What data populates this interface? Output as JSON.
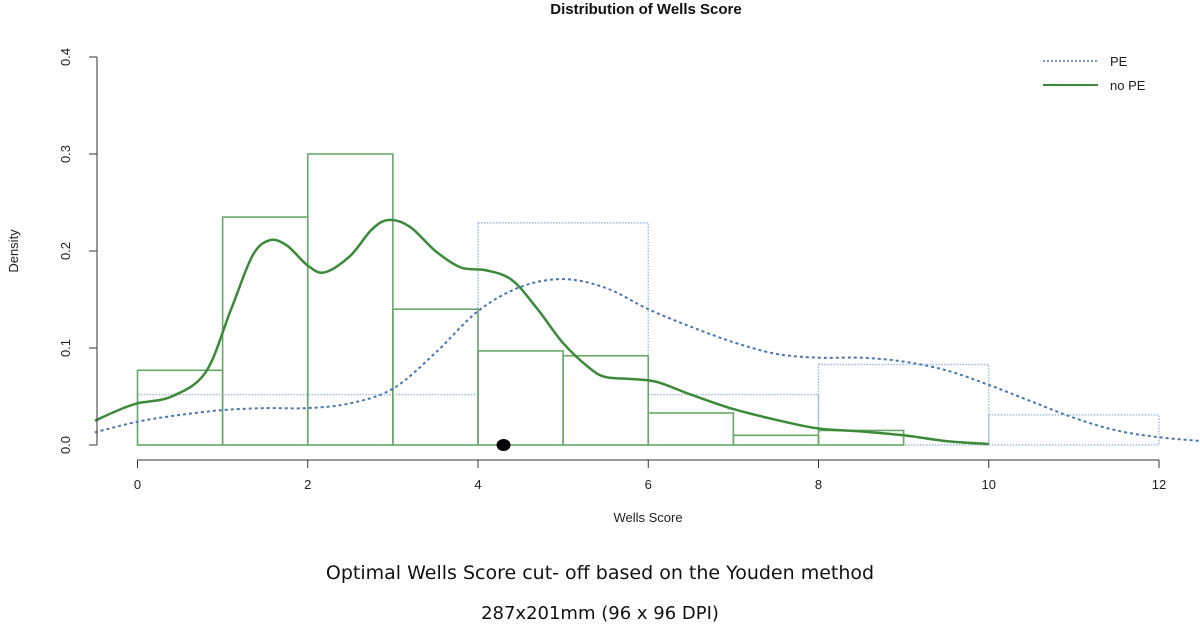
{
  "chart_data": {
    "type": "histogram",
    "title": "Distribution of Wells Score",
    "xlabel": "Wells Score",
    "ylabel": "Density",
    "xlim": [
      -0.5,
      12.5
    ],
    "ylim": [
      0,
      0.4
    ],
    "x_ticks": [
      "0",
      "2",
      "4",
      "6",
      "8",
      "10",
      "12"
    ],
    "y_ticks": [
      "0.0",
      "0.1",
      "0.2",
      "0.3",
      "0.4"
    ],
    "legend_position": "top-right",
    "grid": false,
    "series": [
      {
        "name": "PE",
        "line_style": "dotted",
        "color": "#4a76b0",
        "histogram": [
          {
            "x0": 0,
            "x1": 4,
            "density": 0.052
          },
          {
            "x0": 4,
            "x1": 6,
            "density": 0.229
          },
          {
            "x0": 6,
            "x1": 8,
            "density": 0.052
          },
          {
            "x0": 8,
            "x1": 10,
            "density": 0.083
          },
          {
            "x0": 10,
            "x1": 12,
            "density": 0.031
          }
        ],
        "density_curve": [
          [
            -0.5,
            0.013
          ],
          [
            0,
            0.024
          ],
          [
            0.5,
            0.031
          ],
          [
            1,
            0.036
          ],
          [
            1.5,
            0.038
          ],
          [
            2,
            0.038
          ],
          [
            2.5,
            0.043
          ],
          [
            3,
            0.058
          ],
          [
            3.5,
            0.095
          ],
          [
            4,
            0.138
          ],
          [
            4.5,
            0.163
          ],
          [
            5,
            0.171
          ],
          [
            5.5,
            0.162
          ],
          [
            6,
            0.14
          ],
          [
            6.5,
            0.122
          ],
          [
            7,
            0.106
          ],
          [
            7.5,
            0.094
          ],
          [
            8,
            0.09
          ],
          [
            8.5,
            0.09
          ],
          [
            9,
            0.086
          ],
          [
            9.5,
            0.077
          ],
          [
            10,
            0.062
          ],
          [
            10.5,
            0.045
          ],
          [
            11,
            0.028
          ],
          [
            11.5,
            0.015
          ],
          [
            12,
            0.008
          ],
          [
            12.5,
            0.004
          ]
        ]
      },
      {
        "name": "no PE",
        "line_style": "solid",
        "color": "#3a8a3a",
        "histogram": [
          {
            "x0": 0,
            "x1": 1,
            "density": 0.077
          },
          {
            "x0": 1,
            "x1": 2,
            "density": 0.235
          },
          {
            "x0": 2,
            "x1": 3,
            "density": 0.3
          },
          {
            "x0": 3,
            "x1": 4,
            "density": 0.14
          },
          {
            "x0": 4,
            "x1": 5,
            "density": 0.097
          },
          {
            "x0": 5,
            "x1": 6,
            "density": 0.092
          },
          {
            "x0": 6,
            "x1": 7,
            "density": 0.033
          },
          {
            "x0": 7,
            "x1": 8,
            "density": 0.01
          },
          {
            "x0": 8,
            "x1": 9,
            "density": 0.015
          }
        ],
        "density_curve": [
          [
            -0.5,
            0.025
          ],
          [
            -0.25,
            0.035
          ],
          [
            0,
            0.043
          ],
          [
            0.4,
            0.05
          ],
          [
            0.8,
            0.075
          ],
          [
            1.1,
            0.14
          ],
          [
            1.35,
            0.195
          ],
          [
            1.55,
            0.211
          ],
          [
            1.75,
            0.206
          ],
          [
            2,
            0.185
          ],
          [
            2.2,
            0.178
          ],
          [
            2.5,
            0.195
          ],
          [
            2.75,
            0.222
          ],
          [
            2.95,
            0.232
          ],
          [
            3.2,
            0.225
          ],
          [
            3.5,
            0.2
          ],
          [
            3.8,
            0.183
          ],
          [
            4.1,
            0.18
          ],
          [
            4.4,
            0.17
          ],
          [
            4.7,
            0.14
          ],
          [
            5,
            0.105
          ],
          [
            5.3,
            0.08
          ],
          [
            5.5,
            0.07
          ],
          [
            5.8,
            0.068
          ],
          [
            6.1,
            0.065
          ],
          [
            6.5,
            0.052
          ],
          [
            7,
            0.037
          ],
          [
            7.5,
            0.026
          ],
          [
            8,
            0.017
          ],
          [
            8.5,
            0.014
          ],
          [
            9,
            0.01
          ],
          [
            9.5,
            0.004
          ],
          [
            10,
            0.001
          ]
        ]
      }
    ],
    "marker": {
      "x": 4.3,
      "y": 0
    }
  },
  "captions": {
    "main": "Optimal Wells Score cut- off based on the Youden method",
    "dims": "287x201mm (96 x 96 DPI)"
  }
}
